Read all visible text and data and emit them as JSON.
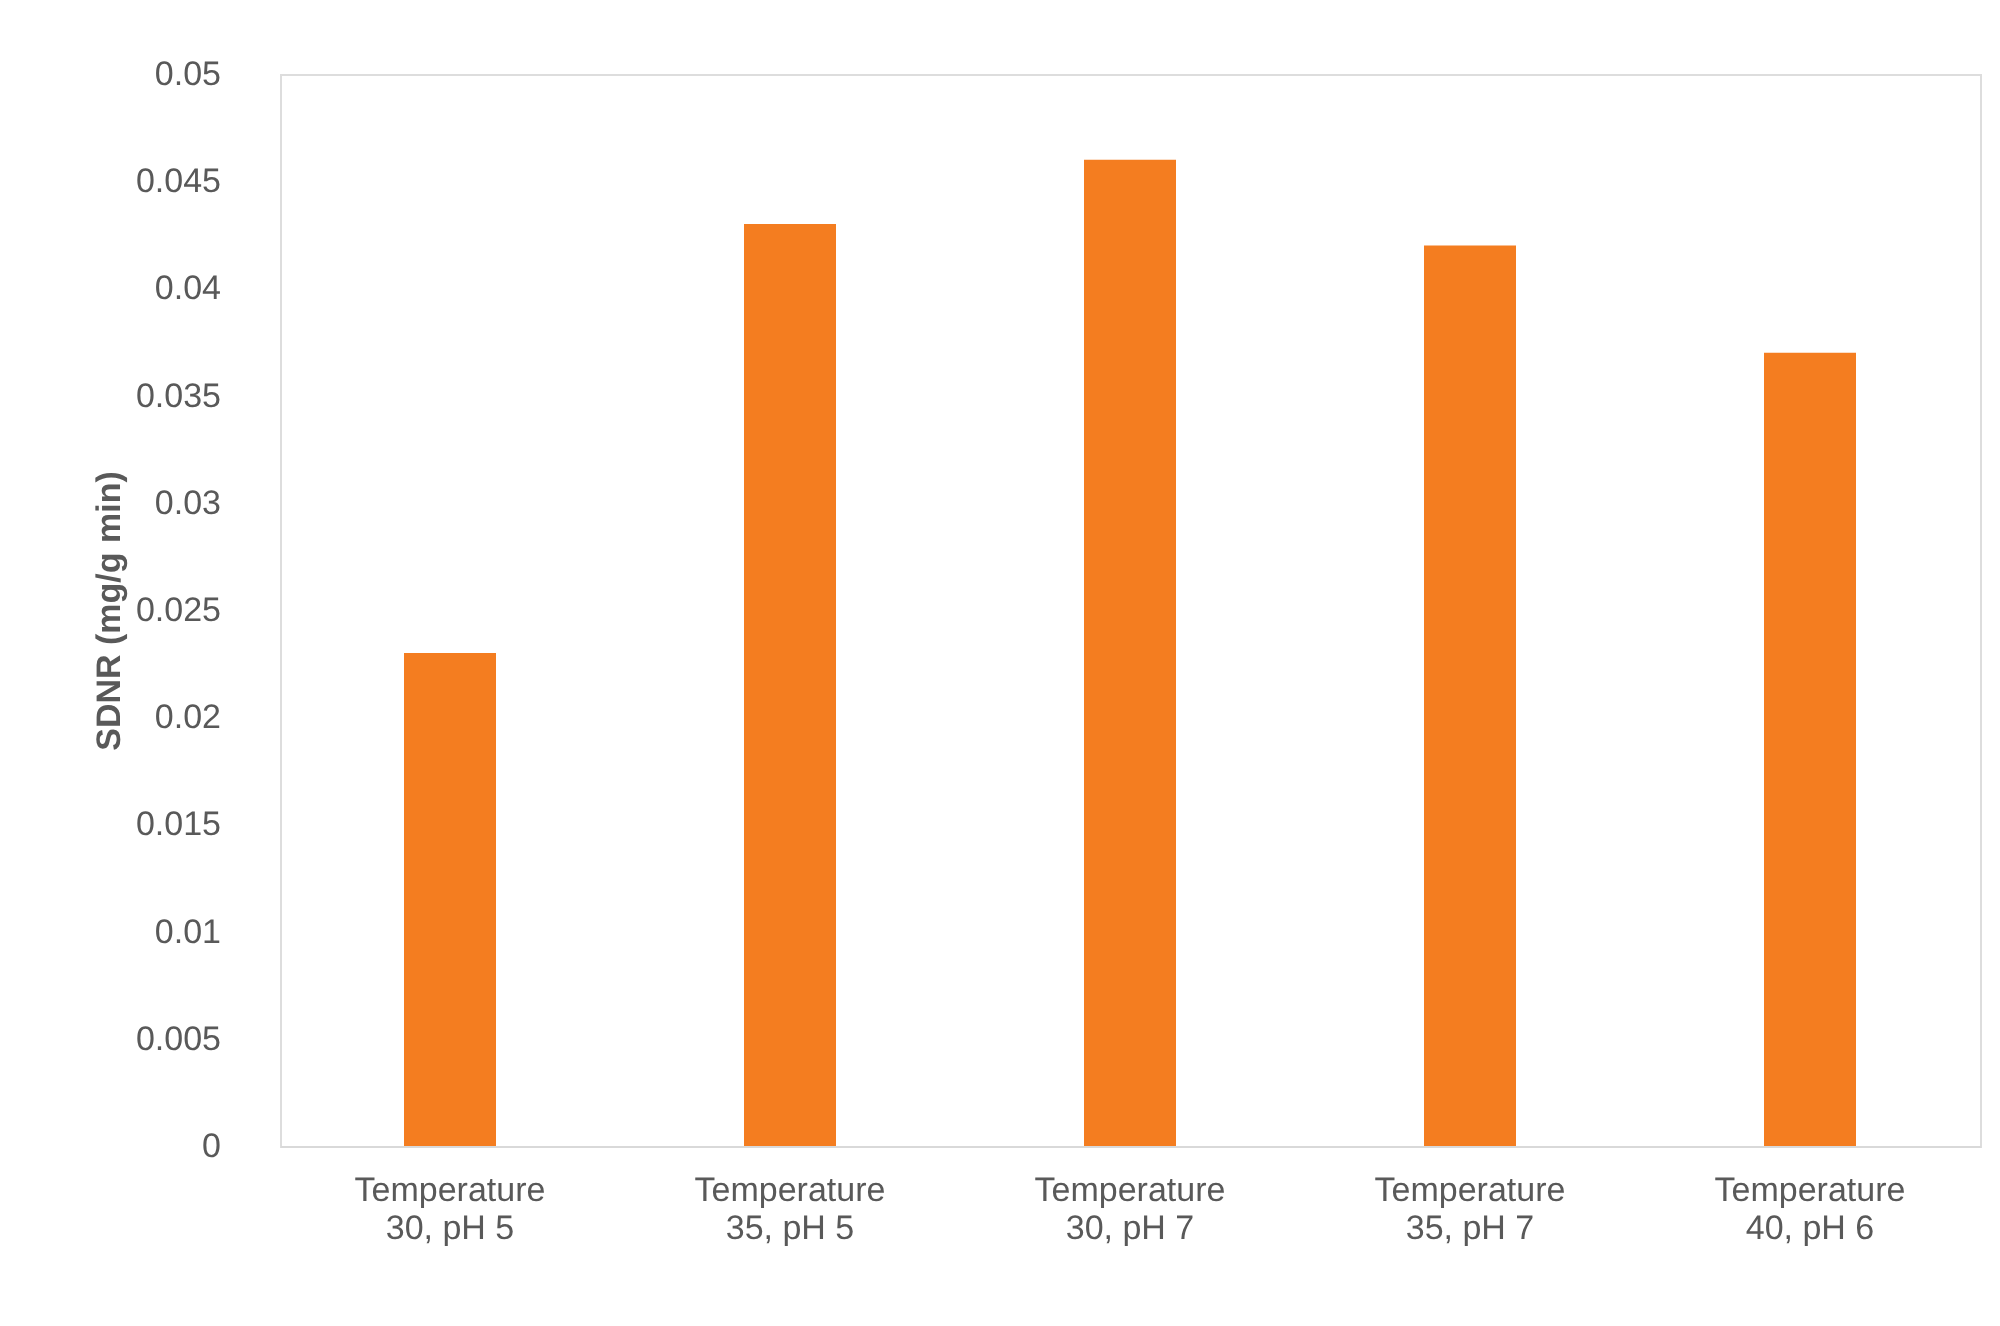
{
  "chart_data": {
    "type": "bar",
    "ylabel": "SDNR (mg/g min)",
    "categories": [
      "Temperature\n30, pH 5",
      "Temperature\n35, pH 5",
      "Temperature\n30, pH 7",
      "Temperature\n35, pH 7",
      "Temperature\n40, pH 6"
    ],
    "values": [
      0.023,
      0.043,
      0.046,
      0.042,
      0.037
    ],
    "color": "#f47d20",
    "ylim": [
      0,
      0.05
    ],
    "yticks": [
      0,
      0.005,
      0.01,
      0.015,
      0.02,
      0.025,
      0.03,
      0.035,
      0.04,
      0.045,
      0.05
    ]
  }
}
